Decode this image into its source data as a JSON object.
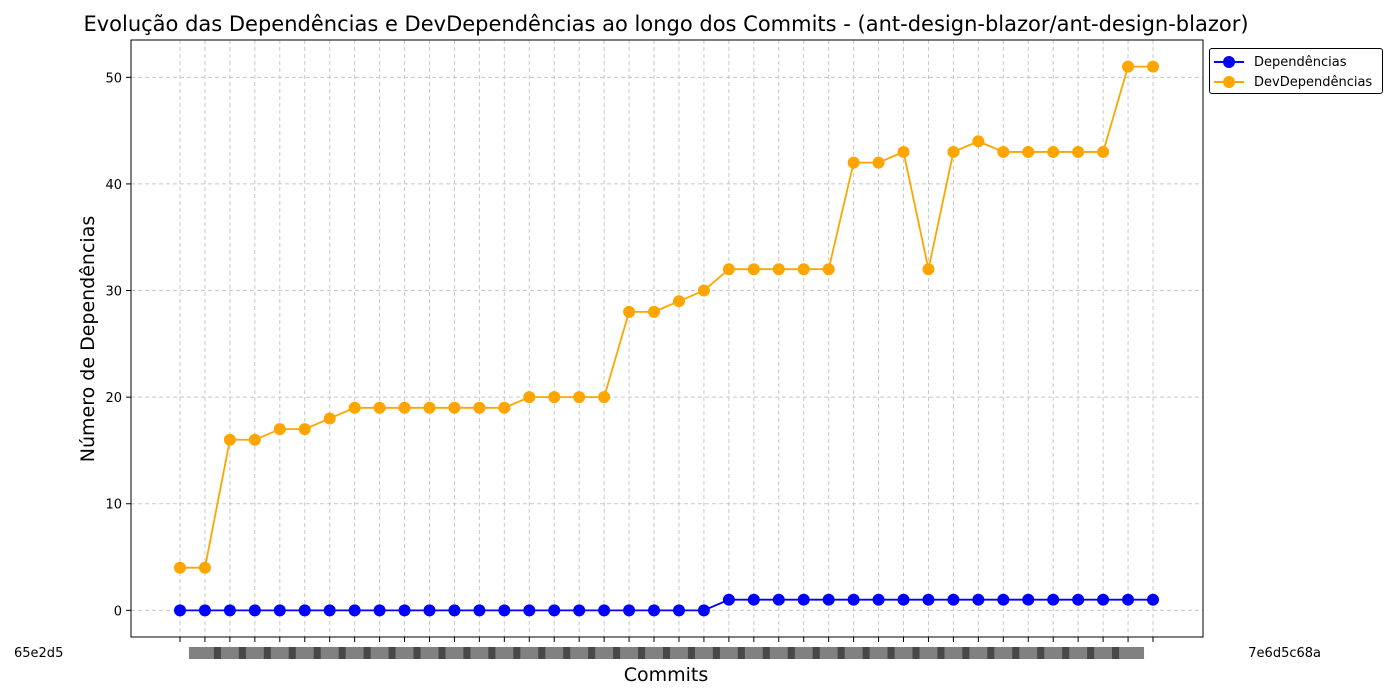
{
  "chart_data": {
    "type": "line",
    "title": "Evolução das Dependências e DevDependências ao longo dos Commits - (ant-design-blazor/ant-design-blazor)",
    "xlabel": "Commits",
    "ylabel": "Número de Dependências",
    "ylim": [
      -2.5,
      53.5
    ],
    "yticks": [
      0,
      10,
      20,
      30,
      40,
      50
    ],
    "grid": true,
    "legend_position": "upper right, outside plot",
    "first_tick_label": "65e2d5",
    "last_tick_label": "7e6d5c68a",
    "point_count": 40,
    "series": [
      {
        "name": "Dependências",
        "color": "#0000ff",
        "values": [
          0,
          0,
          0,
          0,
          0,
          0,
          0,
          0,
          0,
          0,
          0,
          0,
          0,
          0,
          0,
          0,
          0,
          0,
          0,
          0,
          0,
          0,
          1,
          1,
          1,
          1,
          1,
          1,
          1,
          1,
          1,
          1,
          1,
          1,
          1,
          1,
          1,
          1,
          1,
          1
        ]
      },
      {
        "name": "DevDependências",
        "color": "#ffa500",
        "values": [
          4,
          4,
          16,
          16,
          17,
          17,
          18,
          19,
          19,
          19,
          19,
          19,
          19,
          19,
          20,
          20,
          20,
          20,
          28,
          28,
          29,
          30,
          32,
          32,
          32,
          32,
          32,
          42,
          42,
          43,
          32,
          43,
          44,
          43,
          43,
          43,
          43,
          43,
          51,
          51
        ]
      }
    ]
  }
}
